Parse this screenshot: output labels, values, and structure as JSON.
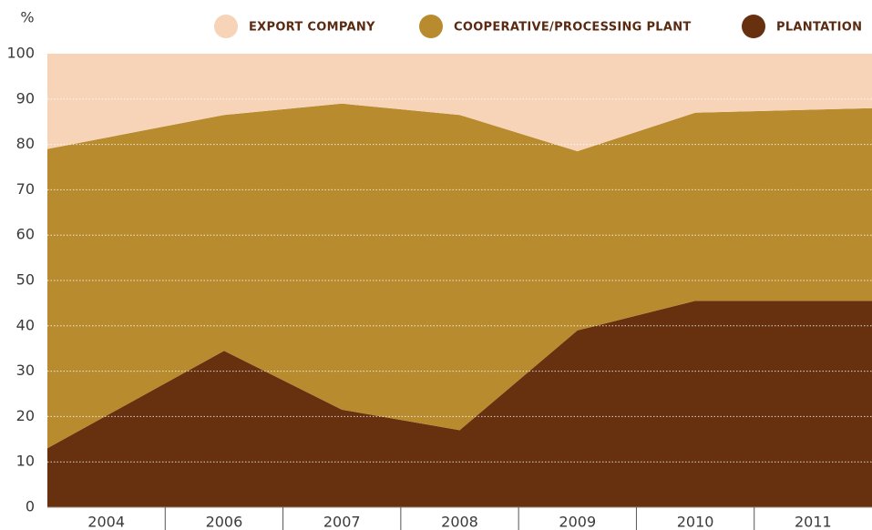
{
  "chart_data": {
    "type": "stacked_area",
    "y_unit_label": "%",
    "categories": [
      "2004",
      "2006",
      "2007",
      "2008",
      "2009",
      "2010",
      "2011"
    ],
    "series": [
      {
        "name": "PLANTATION",
        "color": "#67300e",
        "values": [
          13,
          34.5,
          21.5,
          17,
          39,
          45.5,
          45.5
        ]
      },
      {
        "name": "COOPERATIVE/PROCESSING PLANT",
        "color": "#b98b2f",
        "values": [
          66,
          52,
          67.5,
          69.5,
          39.5,
          41.5,
          42.5
        ]
      },
      {
        "name": "EXPORT COMPANY",
        "color": "#f7d4b8",
        "values": [
          21,
          13.5,
          11,
          13.5,
          21.5,
          13,
          12
        ]
      }
    ],
    "ylim": [
      0,
      100
    ],
    "yticks": [
      0,
      10,
      20,
      30,
      40,
      50,
      60,
      70,
      80,
      90,
      100
    ],
    "grid": true
  }
}
